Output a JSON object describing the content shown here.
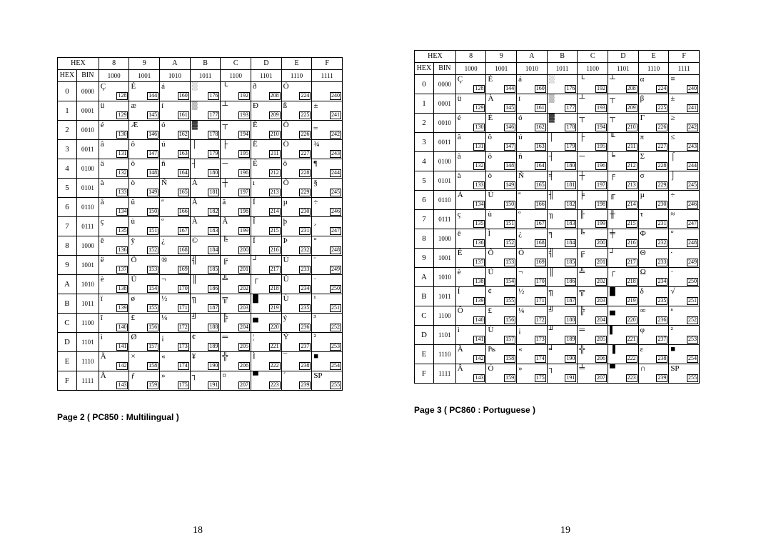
{
  "hexHeader": "HEX",
  "binHeader": "BIN",
  "cols": [
    {
      "hex": "8",
      "bin": "1000"
    },
    {
      "hex": "9",
      "bin": "1001"
    },
    {
      "hex": "A",
      "bin": "1010"
    },
    {
      "hex": "B",
      "bin": "1011"
    },
    {
      "hex": "C",
      "bin": "1100"
    },
    {
      "hex": "D",
      "bin": "1101"
    },
    {
      "hex": "E",
      "bin": "1110"
    },
    {
      "hex": "F",
      "bin": "1111"
    }
  ],
  "rows": [
    {
      "hex": "0",
      "bin": "0000"
    },
    {
      "hex": "1",
      "bin": "0001"
    },
    {
      "hex": "2",
      "bin": "0010"
    },
    {
      "hex": "3",
      "bin": "0011"
    },
    {
      "hex": "4",
      "bin": "0100"
    },
    {
      "hex": "5",
      "bin": "0101"
    },
    {
      "hex": "6",
      "bin": "0110"
    },
    {
      "hex": "7",
      "bin": "0111"
    },
    {
      "hex": "8",
      "bin": "1000"
    },
    {
      "hex": "9",
      "bin": "1001"
    },
    {
      "hex": "A",
      "bin": "1010"
    },
    {
      "hex": "B",
      "bin": "1011"
    },
    {
      "hex": "C",
      "bin": "1100"
    },
    {
      "hex": "D",
      "bin": "1101"
    },
    {
      "hex": "E",
      "bin": "1110"
    },
    {
      "hex": "F",
      "bin": "1111"
    }
  ],
  "left": {
    "caption": "Page 2 ( PC850 : Multilingual )",
    "pageNumber": "18",
    "glyphs": [
      [
        "Ç",
        "É",
        "á",
        "░",
        "└",
        "ð",
        "Ó",
        "­"
      ],
      [
        "ü",
        "æ",
        "í",
        "▒",
        "┴",
        "Ð",
        "ß",
        "±"
      ],
      [
        "é",
        "Æ",
        "ó",
        "▓",
        "┬",
        "Ê",
        "Ô",
        "‗"
      ],
      [
        "â",
        "ô",
        "ú",
        "│",
        "├",
        "Ë",
        "Ò",
        "¾"
      ],
      [
        "ä",
        "ö",
        "ñ",
        "┤",
        "─",
        "È",
        "õ",
        "¶"
      ],
      [
        "à",
        "ò",
        "Ñ",
        "Á",
        "┼",
        "ı",
        "Õ",
        "§"
      ],
      [
        "å",
        "û",
        "ª",
        "Â",
        "ã",
        "Í",
        "µ",
        "÷"
      ],
      [
        "ç",
        "ù",
        "º",
        "À",
        "Ã",
        "Î",
        "þ",
        "¸"
      ],
      [
        "ê",
        "ÿ",
        "¿",
        "©",
        "╚",
        "Ï",
        "Þ",
        "°"
      ],
      [
        "ë",
        "Ö",
        "®",
        "╣",
        "╔",
        "┘",
        "Ú",
        "¨"
      ],
      [
        "è",
        "Ü",
        "¬",
        "║",
        "╩",
        "┌",
        "Û",
        "·"
      ],
      [
        "ï",
        "ø",
        "½",
        "╗",
        "╦",
        "█",
        "Ù",
        "¹"
      ],
      [
        "î",
        "£",
        "¼",
        "╝",
        "╠",
        "▄",
        "ý",
        "³"
      ],
      [
        "ì",
        "Ø",
        "¡",
        "¢",
        "═",
        "¦",
        "Ý",
        "²"
      ],
      [
        "Ä",
        "×",
        "«",
        "¥",
        "╬",
        "Ì",
        "¯",
        "■"
      ],
      [
        "Å",
        "ƒ",
        "»",
        "┐",
        "¤",
        "▀",
        "´",
        "SP"
      ]
    ]
  },
  "right": {
    "caption": "Page 3 ( PC860 : Portuguese )",
    "pageNumber": "19",
    "glyphs": [
      [
        "Ç",
        "É",
        "á",
        "░",
        "└",
        "┴",
        "α",
        "≡"
      ],
      [
        "ü",
        "À",
        "í",
        "▒",
        "┴",
        "┬",
        "β",
        "±"
      ],
      [
        "é",
        "È",
        "ó",
        "▓",
        "┬",
        "┬",
        "Γ",
        "≥"
      ],
      [
        "â",
        "ô",
        "ú",
        "│",
        "├",
        "╙",
        "π",
        "≤"
      ],
      [
        "ã",
        "õ",
        "ñ",
        "┤",
        "─",
        "╘",
        "Σ",
        "⌠"
      ],
      [
        "à",
        "ò",
        "Ñ",
        "╡",
        "┼",
        "╒",
        "σ",
        "⌡"
      ],
      [
        "Á",
        "Ú",
        "ª",
        "╢",
        "╞",
        "╓",
        "µ",
        "÷"
      ],
      [
        "ç",
        "ù",
        "º",
        "╖",
        "╟",
        "╫",
        "τ",
        "≈"
      ],
      [
        "ê",
        "Ì",
        "¿",
        "╕",
        "╚",
        "╪",
        "Φ",
        "°"
      ],
      [
        "Ê",
        "Õ",
        "Ò",
        "╣",
        "╔",
        "┘",
        "Θ",
        "∙"
      ],
      [
        "è",
        "Ü",
        "¬",
        "║",
        "╩",
        "┌",
        "Ω",
        "·"
      ],
      [
        "Í",
        "¢",
        "½",
        "╗",
        "╦",
        "█",
        "δ",
        "√"
      ],
      [
        "Ô",
        "£",
        "¼",
        "╝",
        "╠",
        "▄",
        "∞",
        "ⁿ"
      ],
      [
        "ì",
        "Ù",
        "¡",
        "╜",
        "═",
        "▌",
        "φ",
        "²"
      ],
      [
        "Ã",
        "₧",
        "«",
        "╛",
        "╬",
        "▐",
        "ε",
        "■"
      ],
      [
        "Â",
        "Ó",
        "»",
        "┐",
        "╧",
        "▀",
        "∩",
        "SP"
      ]
    ]
  },
  "decimalBase": 128
}
